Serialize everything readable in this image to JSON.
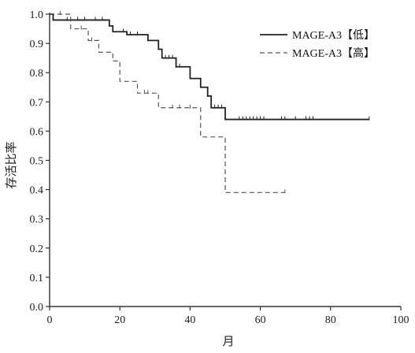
{
  "chart_data": {
    "type": "line",
    "subtype": "kaplan-meier-step",
    "xlabel": "月",
    "ylabel": "存活比率",
    "xlim": [
      0,
      100
    ],
    "ylim": [
      0,
      1.0
    ],
    "x_ticks": [
      "0",
      "20",
      "40",
      "60",
      "80",
      "100"
    ],
    "y_ticks": [
      "0.0",
      "0.1",
      "0.2",
      "0.3",
      "0.4",
      "0.5",
      "0.6",
      "0.7",
      "0.8",
      "0.9",
      "1.0"
    ],
    "grid": false,
    "legend_position": "top-right",
    "series": [
      {
        "name": "MAGE-A3【低】",
        "line_style": "solid",
        "color": "#222222",
        "steps": [
          [
            0,
            1.0
          ],
          [
            1,
            0.98
          ],
          [
            17,
            0.96
          ],
          [
            18,
            0.94
          ],
          [
            22,
            0.93
          ],
          [
            28,
            0.91
          ],
          [
            31,
            0.88
          ],
          [
            32,
            0.85
          ],
          [
            36,
            0.82
          ],
          [
            40,
            0.78
          ],
          [
            43,
            0.75
          ],
          [
            45,
            0.72
          ],
          [
            46,
            0.68
          ],
          [
            50,
            0.64
          ],
          [
            91,
            0.64
          ]
        ],
        "censor_x": [
          5,
          8,
          10,
          13,
          15,
          21,
          23,
          25,
          33,
          34,
          35,
          36,
          37,
          45,
          47,
          48,
          49,
          54,
          55,
          56,
          57,
          58,
          59,
          60,
          61,
          66,
          67,
          70,
          73,
          74,
          75,
          91
        ]
      },
      {
        "name": "MAGE-A3【高】",
        "line_style": "dashed",
        "color": "#555555",
        "steps": [
          [
            0,
            1.0
          ],
          [
            6,
            0.95
          ],
          [
            11,
            0.91
          ],
          [
            14,
            0.87
          ],
          [
            18,
            0.84
          ],
          [
            20,
            0.77
          ],
          [
            25,
            0.73
          ],
          [
            31,
            0.68
          ],
          [
            43,
            0.58
          ],
          [
            50,
            0.39
          ],
          [
            67,
            0.39
          ]
        ],
        "censor_x": [
          3,
          9,
          12,
          27,
          28,
          35,
          37,
          40,
          67
        ]
      }
    ]
  }
}
